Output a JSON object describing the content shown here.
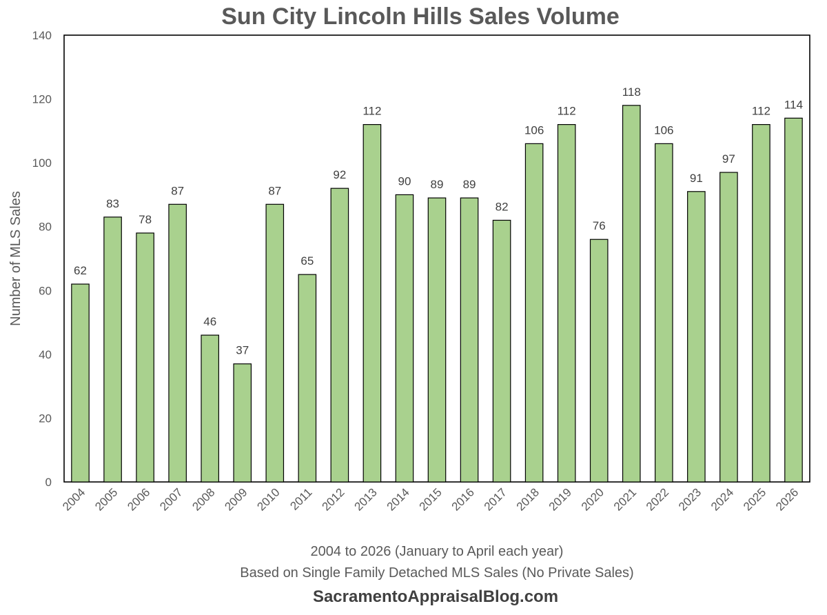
{
  "chart_data": {
    "type": "bar",
    "title": "Sun City Lincoln Hills Sales Volume",
    "categories": [
      "2004",
      "2005",
      "2006",
      "2007",
      "2008",
      "2009",
      "2010",
      "2011",
      "2012",
      "2013",
      "2014",
      "2015",
      "2016",
      "2017",
      "2018",
      "2019",
      "2020",
      "2021",
      "2022",
      "2023",
      "2024",
      "2025",
      "2026"
    ],
    "values": [
      62,
      83,
      78,
      87,
      46,
      37,
      87,
      65,
      92,
      112,
      90,
      89,
      89,
      82,
      106,
      112,
      76,
      118,
      106,
      91,
      97,
      112,
      114
    ],
    "ylabel": "Number of MLS Sales",
    "xlabel": "2004 to 2026 (January to April each year)",
    "xlabel2": "Based on Single Family Detached MLS Sales (No Private Sales)",
    "ylim": [
      0,
      140
    ],
    "yticks": [
      0,
      20,
      40,
      60,
      80,
      100,
      120,
      140
    ],
    "grid": false,
    "data_labels": true,
    "legend": "none",
    "bar_color": "#a9d18e",
    "bar_edge_color": "#000000"
  },
  "footer": {
    "site": "SacramentoAppraisalBlog.com"
  }
}
